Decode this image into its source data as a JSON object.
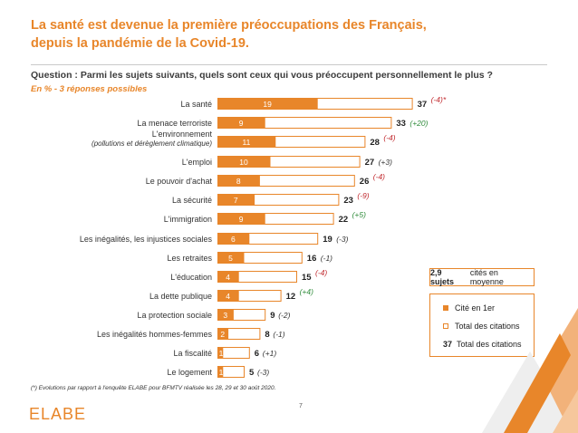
{
  "header": {
    "title_line1": "La santé est devenue la première préoccupations des Français,",
    "title_line2": "depuis la pandémie de la Covid-19.",
    "question": "Question : Parmi les sujets suivants, quels sont ceux qui vous préoccupent personnellement le plus ?",
    "subtitle": "En  % - 3 réponses possibles"
  },
  "colors": {
    "accent": "#E8862A",
    "negative": "#C0282D",
    "positive": "#2E8B3A",
    "neutral": "#333333"
  },
  "chart_data": {
    "type": "bar",
    "orientation": "horizontal",
    "categories": [
      "La santé",
      "La menace terroriste",
      "L'environnement",
      "L'emploi",
      "Le pouvoir d'achat",
      "La sécurité",
      "L'immigration",
      "Les inégalités, les injustices sociales",
      "Les retraites",
      "L'éducation",
      "La dette publique",
      "La protection sociale",
      "Les inégalités hommes-femmes",
      "La fiscalité",
      "Le logement"
    ],
    "category_sublabels": [
      "",
      "",
      "(pollutions et dérèglement climatique)",
      "",
      "",
      "",
      "",
      "",
      "",
      "",
      "",
      "",
      "",
      "",
      ""
    ],
    "series": [
      {
        "name": "Cité en 1er",
        "values": [
          19,
          9,
          11,
          10,
          8,
          7,
          9,
          6,
          5,
          4,
          4,
          3,
          2,
          1,
          1
        ]
      },
      {
        "name": "Total des citations",
        "values": [
          37,
          33,
          28,
          27,
          26,
          23,
          22,
          19,
          16,
          15,
          12,
          9,
          8,
          6,
          5
        ]
      }
    ],
    "changes": [
      "(-4)*",
      "(+20)",
      "(-4)",
      "(+3)",
      "(-4)",
      "(-9)",
      "(+5)",
      "(-3)",
      "(-1)",
      "(-4)",
      "(+4)",
      "(-2)",
      "(-1)",
      "(+1)",
      "(-3)"
    ],
    "change_signs": [
      "neg",
      "pos",
      "neg",
      "neu",
      "neg",
      "neg",
      "pos",
      "neu",
      "neu",
      "neg",
      "pos",
      "neu",
      "neu",
      "neu",
      "neu"
    ],
    "xlim": [
      0,
      37
    ]
  },
  "legend": {
    "average_value": "2,9 sujets",
    "average_text": "cités en moyenne",
    "first_label": "Cité en 1er",
    "total_label": "Total des citations",
    "sample_value": "37",
    "sample_label": "Total des citations"
  },
  "footer": {
    "note": "(*) Evolutions par rapport à l'enquête ELABE pour BFMTV réalisée les 28, 29 et 30 août 2020.",
    "page": "7",
    "logo": "ELABE"
  }
}
